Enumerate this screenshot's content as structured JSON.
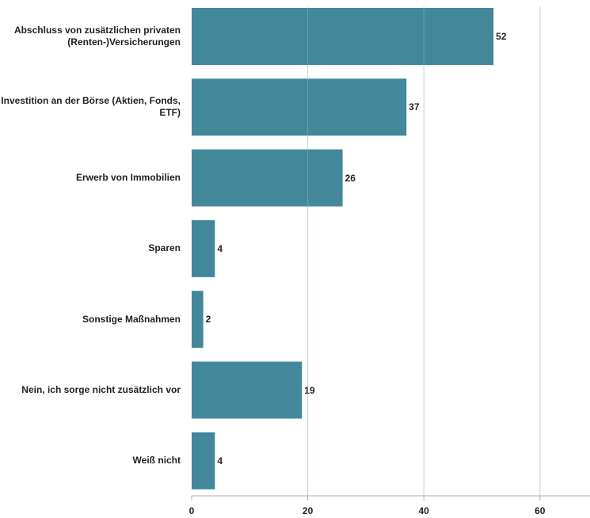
{
  "chart_data": {
    "type": "bar",
    "orientation": "horizontal",
    "categories": [
      "Abschluss von zusätzlichen privaten (Renten-)Versicherungen",
      "Investition an der Börse (Aktien, Fonds, ETF)",
      "Erwerb von Immobilien",
      "Sparen",
      "Sonstige Maßnahmen",
      "Nein, ich sorge nicht zusätzlich vor",
      "Weiß nicht"
    ],
    "values": [
      52,
      37,
      26,
      4,
      2,
      19,
      4
    ],
    "data_labels": [
      "52",
      "37",
      "26",
      "4",
      "2",
      "19",
      "4"
    ],
    "x_ticks": [
      0,
      20,
      40,
      60
    ],
    "tick_labels": [
      "0",
      "20",
      "40",
      "60"
    ],
    "xlim": [
      0,
      69
    ],
    "grid": true,
    "bar_color": "#43879b",
    "grid_color": "#7fb3c2",
    "title": "",
    "xlabel": "",
    "ylabel": ""
  }
}
